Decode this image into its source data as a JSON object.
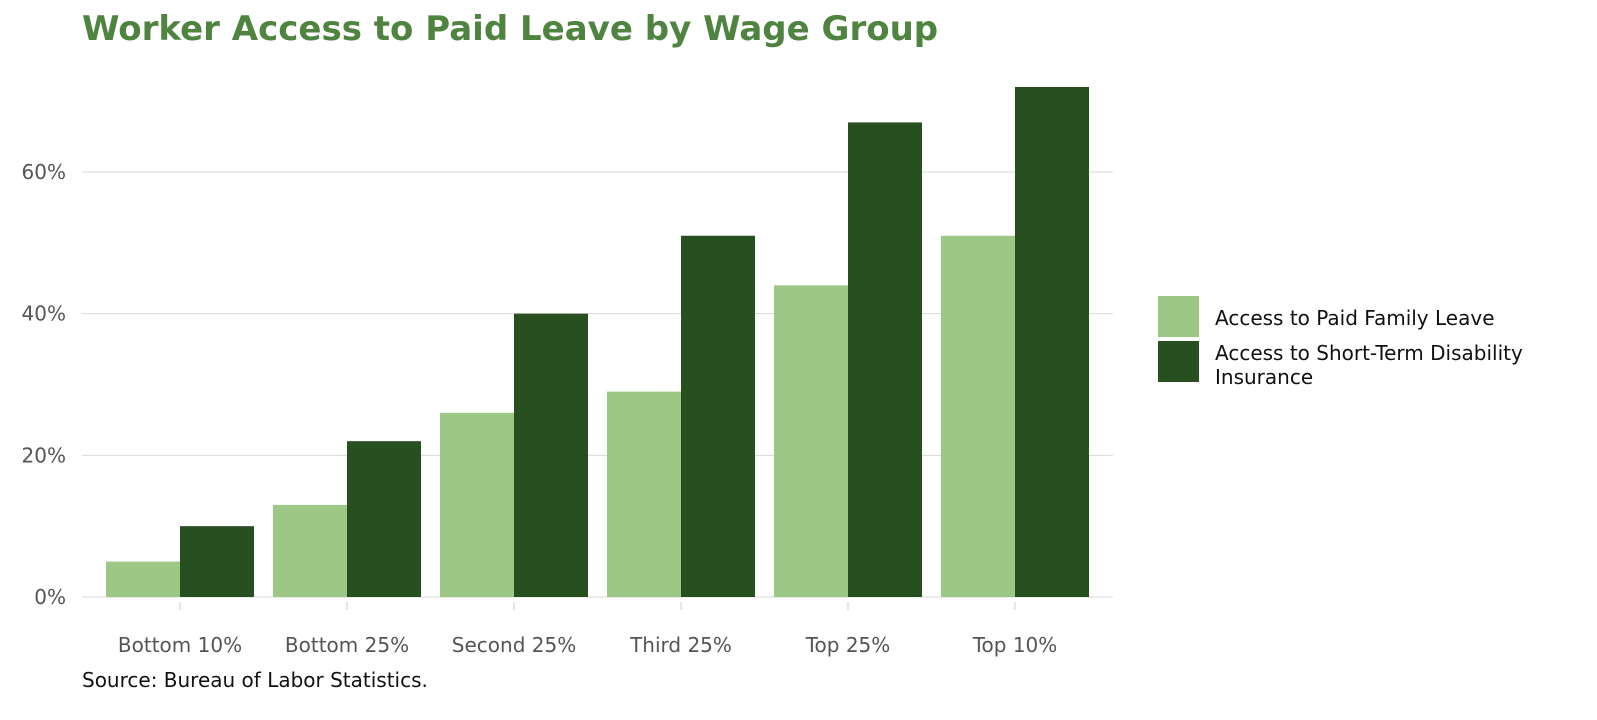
{
  "title": "Worker Access to Paid Leave by Wage Group",
  "source": "Source: Bureau of Labor Statistics.",
  "colors": {
    "title": "#4e8340",
    "paid_family_leave": "#9cc784",
    "short_term_disability": "#274f1f",
    "grid": "#d9d9d9",
    "tick_text": "#555555"
  },
  "legend": {
    "position": "right",
    "items": [
      {
        "label": "Access to Paid Family Leave",
        "color": "#9cc784"
      },
      {
        "label": "Access to Short-Term Disability Insurance",
        "color": "#274f1f"
      }
    ]
  },
  "chart_data": {
    "type": "bar",
    "title": "Worker Access to Paid Leave by Wage Group",
    "xlabel": "",
    "ylabel": "",
    "categories": [
      "Bottom 10%",
      "Bottom 25%",
      "Second 25%",
      "Third 25%",
      "Top 25%",
      "Top 10%"
    ],
    "series": [
      {
        "name": "Access to Paid Family Leave",
        "values": [
          5,
          13,
          26,
          29,
          44,
          51
        ]
      },
      {
        "name": "Access to Short-Term Disability Insurance",
        "values": [
          10,
          22,
          40,
          51,
          67,
          72
        ]
      }
    ],
    "yticks": [
      0,
      20,
      40,
      60
    ],
    "ytick_labels": [
      "0%",
      "20%",
      "40%",
      "60%"
    ],
    "ylim": [
      0,
      72
    ],
    "grid": true,
    "legend_position": "right"
  }
}
